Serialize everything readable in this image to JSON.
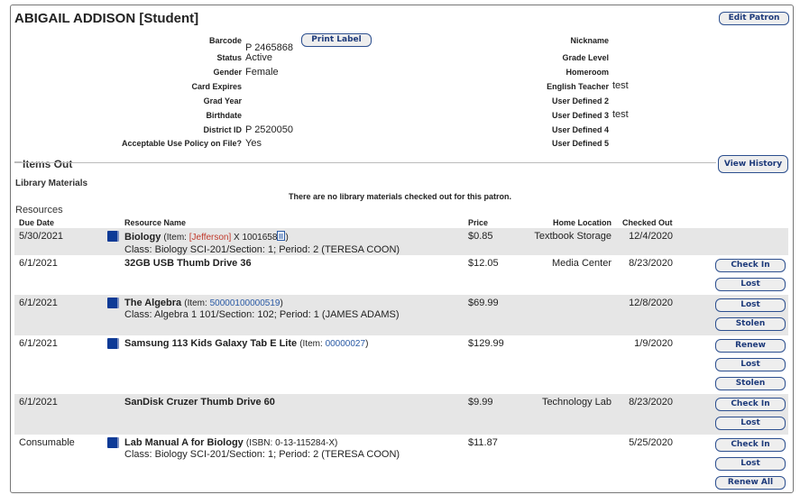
{
  "patron": {
    "title": "ABIGAIL ADDISON [Student]",
    "edit_button": "Edit Patron",
    "print_label_button": "Print Label",
    "left_fields": [
      {
        "label": "Barcode",
        "value": "P 2465868"
      },
      {
        "label": "Status",
        "value": "Active"
      },
      {
        "label": "Gender",
        "value": "Female"
      },
      {
        "label": "Card Expires",
        "value": ""
      },
      {
        "label": "Grad Year",
        "value": ""
      },
      {
        "label": "Birthdate",
        "value": ""
      },
      {
        "label": "District ID",
        "value": "P 2520050"
      },
      {
        "label": "Acceptable Use Policy on File?",
        "value": "Yes"
      }
    ],
    "right_fields": [
      {
        "label": "Nickname",
        "value": ""
      },
      {
        "label": "Grade Level",
        "value": ""
      },
      {
        "label": "Homeroom",
        "value": ""
      },
      {
        "label": "English Teacher",
        "value": "test"
      },
      {
        "label": "User Defined 2",
        "value": ""
      },
      {
        "label": "User Defined 3",
        "value": "test"
      },
      {
        "label": "User Defined 4",
        "value": ""
      },
      {
        "label": "User Defined 5",
        "value": ""
      }
    ]
  },
  "items_out": {
    "heading": "Items Out",
    "view_history_button": "View History",
    "library_materials_heading": "Library Materials",
    "library_empty_message": "There are no library materials checked out for this patron.",
    "resources_heading": "Resources",
    "columns": {
      "due_date": "Due Date",
      "resource_name": "Resource Name",
      "price": "Price",
      "home_location": "Home Location",
      "checked_out": "Checked Out"
    },
    "rows": [
      {
        "due": "5/30/2021",
        "icon": "book-icon",
        "name": "Biology",
        "item_prefix": "(Item: ",
        "item_red": "[Jefferson]",
        "item_link": " X 1001658",
        "item_doc_icon": true,
        "item_suffix": ")",
        "class_line": "Class: Biology SCI-201/Section: 1; Period: 2 (TERESA COON)",
        "price": "$0.85",
        "location": "Textbook Storage",
        "checked_out": "12/4/2020",
        "buttons": [],
        "shaded": true
      },
      {
        "due": "6/1/2021",
        "icon": "",
        "name": "32GB USB Thumb Drive 36",
        "price": "$12.05",
        "location": "Media Center",
        "checked_out": "8/23/2020",
        "buttons": [
          "Check In",
          "Lost"
        ],
        "shaded": false
      },
      {
        "due": "6/1/2021",
        "icon": "book-icon",
        "name": "The Algebra",
        "item_prefix": "(Item: ",
        "item_link": "50000100000519",
        "item_suffix": ")",
        "class_line": "Class: Algebra 1 101/Section: 102; Period: 1 (JAMES ADAMS)",
        "price": "$69.99",
        "location": "",
        "checked_out": "12/8/2020",
        "buttons": [
          "Lost",
          "Stolen"
        ],
        "shaded": true
      },
      {
        "due": "6/1/2021",
        "icon": "book-icon",
        "name": "Samsung 113 Kids Galaxy Tab E Lite",
        "item_prefix": "(Item: ",
        "item_link": "00000027",
        "item_suffix": ")",
        "price": "$129.99",
        "location": "",
        "checked_out": "1/9/2020",
        "buttons": [
          "Renew",
          "Lost",
          "Stolen"
        ],
        "shaded": false
      },
      {
        "due": "6/1/2021",
        "icon": "",
        "name": "SanDisk Cruzer Thumb Drive 60",
        "price": "$9.99",
        "location": "Technology Lab",
        "checked_out": "8/23/2020",
        "buttons": [
          "Check In",
          "Lost"
        ],
        "shaded": true
      },
      {
        "due": "Consumable",
        "icon": "book-icon",
        "name": "Lab Manual A for Biology",
        "item_prefix": "(ISBN: 0-13-115284-X)",
        "class_line": "Class: Biology SCI-201/Section: 1; Period: 2 (TERESA COON)",
        "price": "$11.87",
        "location": "",
        "checked_out": "5/25/2020",
        "buttons": [
          "Check In",
          "Lost",
          "Renew All"
        ],
        "shaded": false
      }
    ]
  },
  "colors": {
    "button_text": "#1d3a7a",
    "row_shade": "#e6e6e6",
    "book_icon": "#0d3a96",
    "link": "#2a5aa5",
    "school_tag": "#c0392b"
  }
}
